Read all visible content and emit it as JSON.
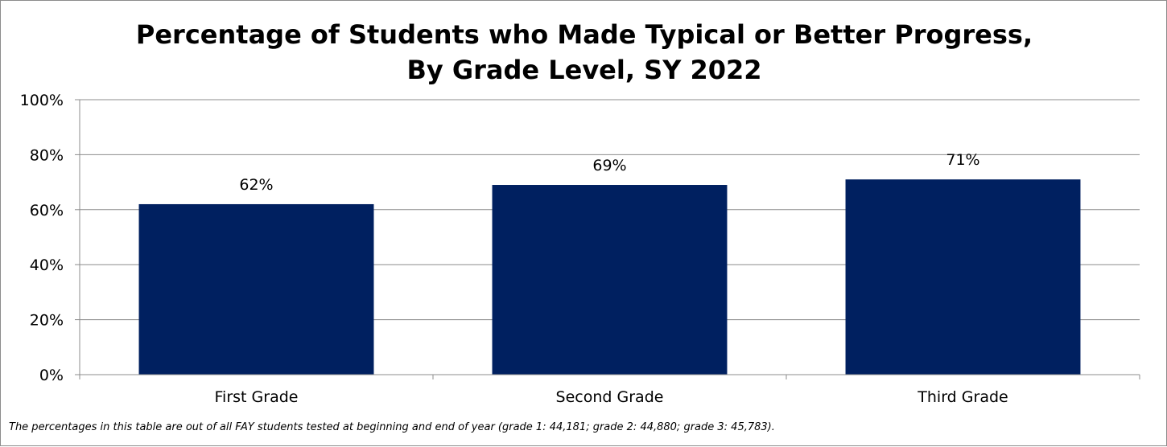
{
  "chart_data": {
    "type": "bar",
    "title_line1": "Percentage of Students who Made Typical or Better Progress,",
    "title_line2": "By Grade Level, SY 2022",
    "categories": [
      "First Grade",
      "Second Grade",
      "Third Grade"
    ],
    "values": [
      62,
      69,
      71
    ],
    "data_labels": [
      "62%",
      "69%",
      "71%"
    ],
    "yticks": [
      0,
      20,
      40,
      60,
      80,
      100
    ],
    "ytick_labels": [
      "0%",
      "20%",
      "40%",
      "60%",
      "80%",
      "100%"
    ],
    "ylim": [
      0,
      100
    ],
    "xlabel": "",
    "ylabel": "",
    "grid": true,
    "bar_color": "#002060",
    "footnote": "The percentages in this table are out of all FAY students tested at beginning and end of year (grade 1: 44,181; grade 2: 44,880; grade 3: 45,783)."
  }
}
